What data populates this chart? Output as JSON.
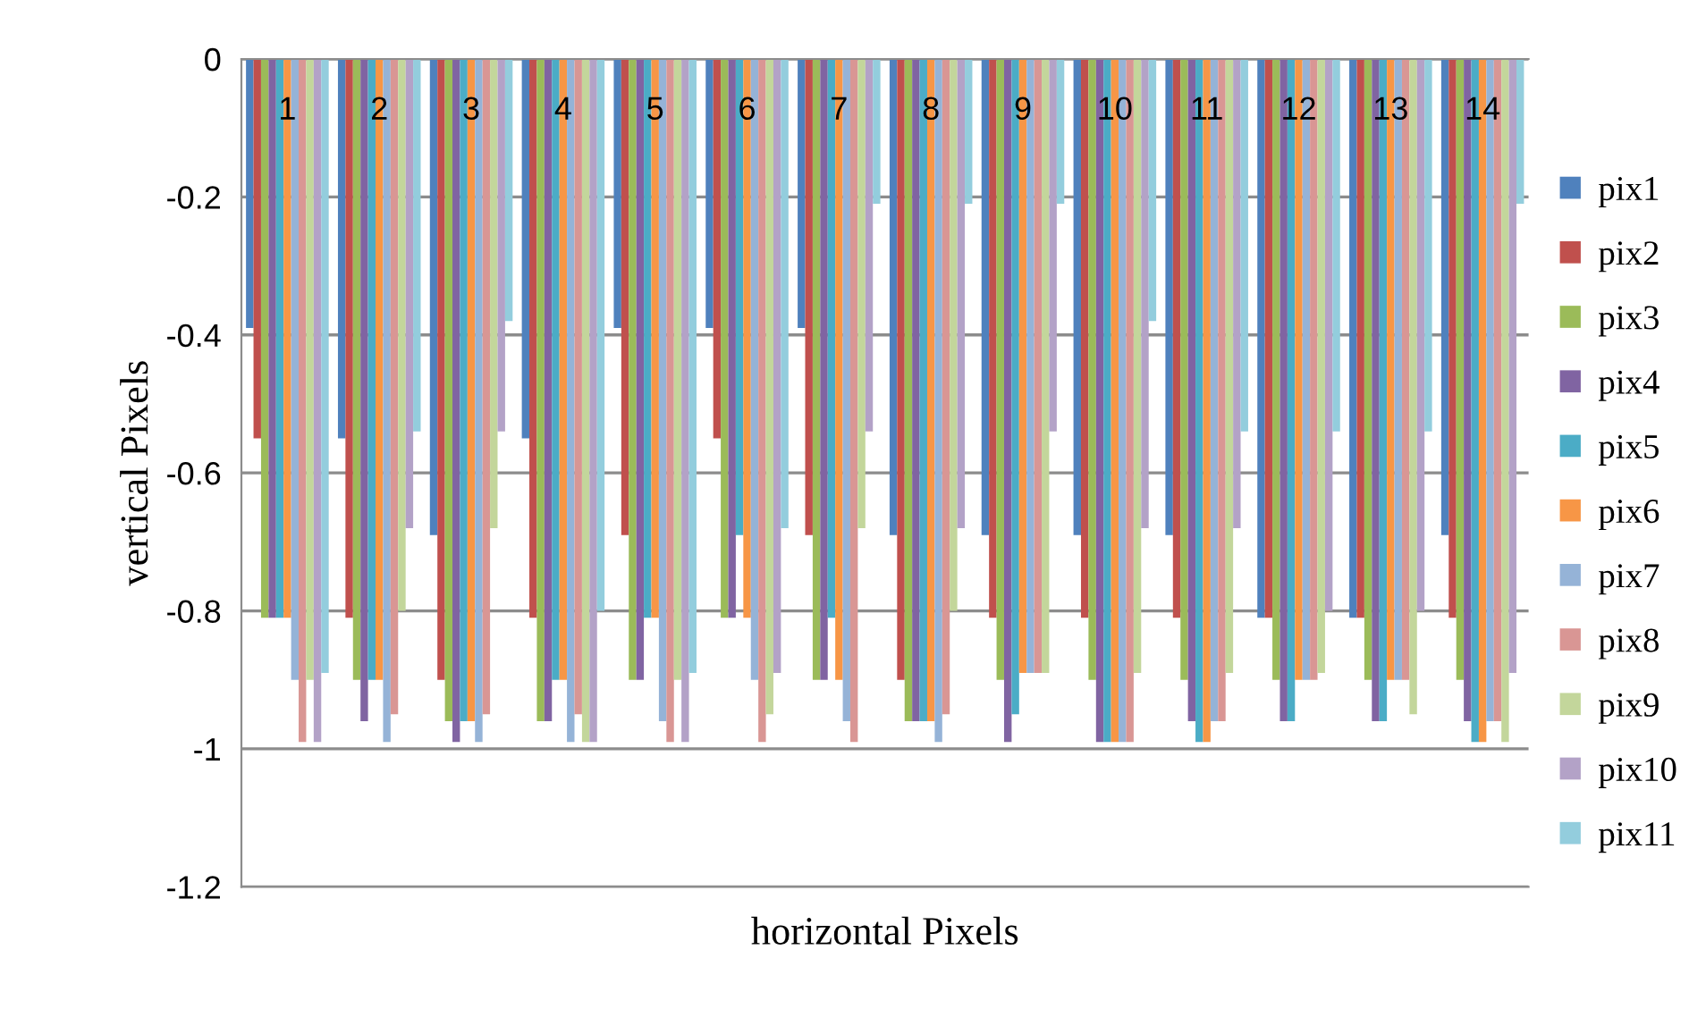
{
  "chart_data": {
    "type": "bar",
    "xlabel": "horizontal Pixels",
    "ylabel": "vertical Pixels",
    "categories": [
      "1",
      "2",
      "3",
      "4",
      "5",
      "6",
      "7",
      "8",
      "9",
      "10",
      "11",
      "12",
      "13",
      "14"
    ],
    "series": [
      {
        "name": "pix1",
        "color": "#4f81bd",
        "values": [
          -0.39,
          -0.55,
          -0.69,
          -0.55,
          -0.39,
          -0.39,
          -0.39,
          -0.69,
          -0.69,
          -0.69,
          -0.69,
          -0.81,
          -0.81,
          -0.69
        ]
      },
      {
        "name": "pix2",
        "color": "#c0504d",
        "values": [
          -0.55,
          -0.81,
          -0.9,
          -0.81,
          -0.69,
          -0.55,
          -0.69,
          -0.9,
          -0.81,
          -0.81,
          -0.81,
          -0.81,
          -0.81,
          -0.81
        ]
      },
      {
        "name": "pix3",
        "color": "#9bbb59",
        "values": [
          -0.81,
          -0.9,
          -0.96,
          -0.96,
          -0.9,
          -0.81,
          -0.9,
          -0.96,
          -0.9,
          -0.9,
          -0.9,
          -0.9,
          -0.9,
          -0.9
        ]
      },
      {
        "name": "pix4",
        "color": "#8064a2",
        "values": [
          -0.81,
          -0.96,
          -0.99,
          -0.96,
          -0.9,
          -0.81,
          -0.9,
          -0.96,
          -0.99,
          -0.99,
          -0.96,
          -0.96,
          -0.96,
          -0.96
        ]
      },
      {
        "name": "pix5",
        "color": "#4bacc6",
        "values": [
          -0.81,
          -0.9,
          -0.96,
          -0.9,
          -0.81,
          -0.69,
          -0.81,
          -0.96,
          -0.95,
          -0.99,
          -0.99,
          -0.96,
          -0.96,
          -0.99
        ]
      },
      {
        "name": "pix6",
        "color": "#f79646",
        "values": [
          -0.81,
          -0.9,
          -0.96,
          -0.9,
          -0.81,
          -0.81,
          -0.9,
          -0.96,
          -0.89,
          -0.99,
          -0.99,
          -0.9,
          -0.9,
          -0.99
        ]
      },
      {
        "name": "pix7",
        "color": "#95b3d7",
        "values": [
          -0.9,
          -0.99,
          -0.99,
          -0.99,
          -0.96,
          -0.9,
          -0.96,
          -0.99,
          -0.89,
          -0.99,
          -0.96,
          -0.9,
          -0.9,
          -0.96
        ]
      },
      {
        "name": "pix8",
        "color": "#d99694",
        "values": [
          -0.99,
          -0.95,
          -0.95,
          -0.95,
          -0.99,
          -0.99,
          -0.99,
          -0.95,
          -0.89,
          -0.99,
          -0.96,
          -0.9,
          -0.9,
          -0.96
        ]
      },
      {
        "name": "pix9",
        "color": "#c3d69b",
        "values": [
          -0.9,
          -0.8,
          -0.68,
          -0.99,
          -0.9,
          -0.95,
          -0.68,
          -0.8,
          -0.89,
          -0.89,
          -0.89,
          -0.89,
          -0.95,
          -0.99
        ]
      },
      {
        "name": "pix10",
        "color": "#b3a2c7",
        "values": [
          -0.99,
          -0.68,
          -0.54,
          -0.99,
          -0.99,
          -0.89,
          -0.54,
          -0.68,
          -0.54,
          -0.68,
          -0.68,
          -0.8,
          -0.8,
          -0.89
        ]
      },
      {
        "name": "pix11",
        "color": "#93cddd",
        "values": [
          -0.89,
          -0.54,
          -0.38,
          -0.8,
          -0.89,
          -0.68,
          -0.21,
          -0.21,
          -0.21,
          -0.38,
          -0.54,
          -0.54,
          -0.54,
          -0.21
        ]
      }
    ],
    "ylim": [
      -1.2,
      0
    ],
    "yticks": [
      0,
      -0.2,
      -0.4,
      -0.6,
      -0.8,
      -1,
      -1.2
    ],
    "grid": "y",
    "legend": "right"
  }
}
